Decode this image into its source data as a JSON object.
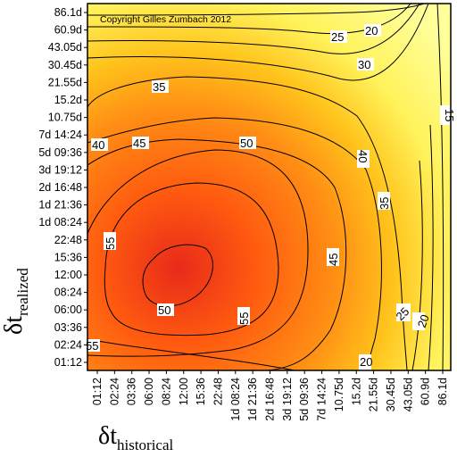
{
  "chart_data": {
    "type": "contour",
    "copyright": "Copyright Gilles Zumbach 2012",
    "xlabel": {
      "symbol": "δt",
      "subscript": "historical"
    },
    "ylabel": {
      "symbol": "δt",
      "subscript": "realized"
    },
    "x_ticks": [
      "01:12",
      "02:24",
      "03:36",
      "06:00",
      "08:24",
      "12:00",
      "15:36",
      "22:48",
      "1d 08:24",
      "1d 21:36",
      "2d 16:48",
      "3d 19:12",
      "5d 09:36",
      "7d 14:24",
      "10.75d",
      "15.2d",
      "21.55d",
      "30.45d",
      "43.05d",
      "60.9d",
      "86.1d"
    ],
    "y_ticks": [
      "01:12",
      "02:24",
      "03:36",
      "06:00",
      "08:24",
      "12:00",
      "15:36",
      "22:48",
      "1d 08:24",
      "1d 21:36",
      "2d 16:48",
      "3d 19:12",
      "5d 09:36",
      "7d 14:24",
      "10.75d",
      "15.2d",
      "21.55d",
      "30.45d",
      "43.05d",
      "60.9d",
      "86.1d"
    ],
    "contour_levels": [
      15,
      20,
      25,
      30,
      35,
      40,
      45,
      50,
      55
    ],
    "contour_labels": [
      {
        "text": "20"
      },
      {
        "text": "25"
      },
      {
        "text": "30"
      },
      {
        "text": "35"
      },
      {
        "text": "40"
      },
      {
        "text": "45"
      },
      {
        "text": "50"
      },
      {
        "text": "15"
      },
      {
        "text": "40"
      },
      {
        "text": "35"
      },
      {
        "text": "45"
      },
      {
        "text": "55"
      },
      {
        "text": "50"
      },
      {
        "text": "55"
      },
      {
        "text": "25"
      },
      {
        "text": "20"
      },
      {
        "text": "20"
      },
      {
        "text": "55"
      }
    ],
    "colormap": [
      "#e82a1a",
      "#ff5a10",
      "#ff8e14",
      "#ffc41c",
      "#fff25a",
      "#ffff9a"
    ],
    "peak": {
      "x": "08:24",
      "y": "08:24",
      "value": 58
    }
  }
}
